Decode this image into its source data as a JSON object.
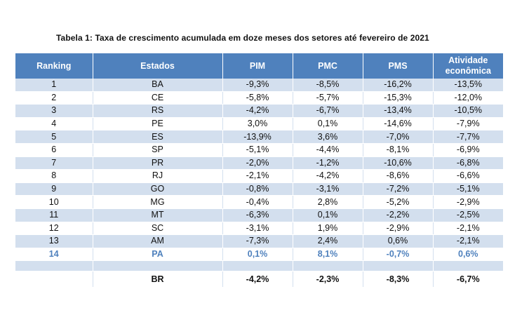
{
  "caption": "Tabela 1: Taxa de crescimento acumulada em doze meses dos setores até fevereiro de 2021",
  "headers": [
    "Ranking",
    "Estados",
    "PIM",
    "PMC",
    "PMS",
    "Atividade econômica"
  ],
  "rows": [
    {
      "rank": "1",
      "state": "BA",
      "pim": "-9,3%",
      "pmc": "-8,5%",
      "pms": "-16,2%",
      "ativ": "-13,5%"
    },
    {
      "rank": "2",
      "state": "CE",
      "pim": "-5,8%",
      "pmc": "-5,7%",
      "pms": "-15,3%",
      "ativ": "-12,0%"
    },
    {
      "rank": "3",
      "state": "RS",
      "pim": "-4,2%",
      "pmc": "-6,7%",
      "pms": "-13,4%",
      "ativ": "-10,5%"
    },
    {
      "rank": "4",
      "state": "PE",
      "pim": "3,0%",
      "pmc": "0,1%",
      "pms": "-14,6%",
      "ativ": "-7,9%"
    },
    {
      "rank": "5",
      "state": "ES",
      "pim": "-13,9%",
      "pmc": "3,6%",
      "pms": "-7,0%",
      "ativ": "-7,7%"
    },
    {
      "rank": "6",
      "state": "SP",
      "pim": "-5,1%",
      "pmc": "-4,4%",
      "pms": "-8,1%",
      "ativ": "-6,9%"
    },
    {
      "rank": "7",
      "state": "PR",
      "pim": "-2,0%",
      "pmc": "-1,2%",
      "pms": "-10,6%",
      "ativ": "-6,8%"
    },
    {
      "rank": "8",
      "state": "RJ",
      "pim": "-2,1%",
      "pmc": "-4,2%",
      "pms": "-8,6%",
      "ativ": "-6,6%"
    },
    {
      "rank": "9",
      "state": "GO",
      "pim": "-0,8%",
      "pmc": "-3,1%",
      "pms": "-7,2%",
      "ativ": "-5,1%"
    },
    {
      "rank": "10",
      "state": "MG",
      "pim": "-0,4%",
      "pmc": "2,8%",
      "pms": "-5,2%",
      "ativ": "-2,9%"
    },
    {
      "rank": "11",
      "state": "MT",
      "pim": "-6,3%",
      "pmc": "0,1%",
      "pms": "-2,2%",
      "ativ": "-2,5%"
    },
    {
      "rank": "12",
      "state": "SC",
      "pim": "-3,1%",
      "pmc": "1,9%",
      "pms": "-2,9%",
      "ativ": "-2,1%"
    },
    {
      "rank": "13",
      "state": "AM",
      "pim": "-7,3%",
      "pmc": "2,4%",
      "pms": "0,6%",
      "ativ": "-2,1%"
    },
    {
      "rank": "14",
      "state": "PA",
      "pim": "0,1%",
      "pmc": "8,1%",
      "pms": "-0,7%",
      "ativ": "0,6%"
    }
  ],
  "total": {
    "state": "BR",
    "pim": "-4,2%",
    "pmc": "-2,3%",
    "pms": "-8,3%",
    "ativ": "-6,7%"
  },
  "colors": {
    "header": "#4f81bd",
    "band": "#d3dfee",
    "highlight": "#4f81bd"
  }
}
